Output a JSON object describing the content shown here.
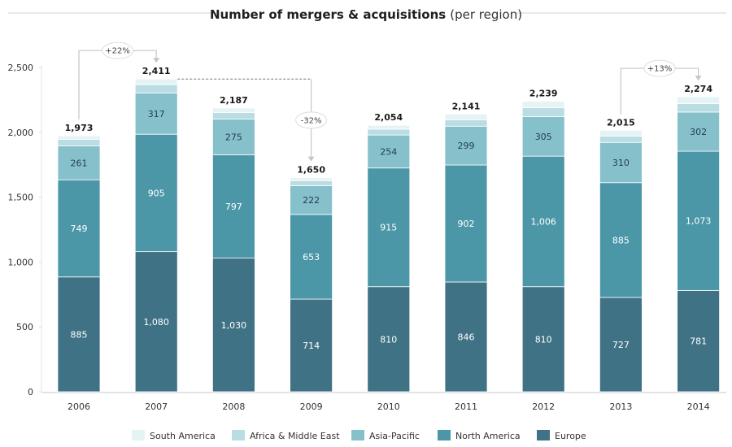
{
  "chart_data": {
    "type": "bar",
    "stacked": true,
    "title": "Number of mergers & acquisitions",
    "subtitle": "(per region)",
    "xlabel": "",
    "ylabel": "",
    "ylim": [
      0,
      2500
    ],
    "yticks": [
      0,
      500,
      1000,
      1500,
      2000,
      2500
    ],
    "ytick_labels": [
      "0",
      "500",
      "1,000",
      "1,500",
      "2,000",
      "2,500"
    ],
    "grid": false,
    "legend_position": "bottom",
    "categories": [
      "2006",
      "2007",
      "2008",
      "2009",
      "2010",
      "2011",
      "2012",
      "2013",
      "2014"
    ],
    "series": [
      {
        "name": "Europe",
        "color": "#3f7285",
        "label_color": "#ffffff",
        "labeled": true,
        "values": [
          885,
          1080,
          1030,
          714,
          810,
          846,
          810,
          727,
          781
        ],
        "labels": [
          "885",
          "1,080",
          "1,030",
          "714",
          "810",
          "846",
          "810",
          "727",
          "781"
        ]
      },
      {
        "name": "North America",
        "color": "#4b97a8",
        "label_color": "#ffffff",
        "labeled": true,
        "values": [
          749,
          905,
          797,
          653,
          915,
          902,
          1006,
          885,
          1073
        ],
        "labels": [
          "749",
          "905",
          "797",
          "653",
          "915",
          "902",
          "1,006",
          "885",
          "1,073"
        ]
      },
      {
        "name": "Asia-Pacific",
        "color": "#86c1cb",
        "label_color": "#1f3d4a",
        "labeled": true,
        "values": [
          261,
          317,
          275,
          222,
          254,
          299,
          305,
          310,
          302
        ],
        "labels": [
          "261",
          "317",
          "275",
          "222",
          "254",
          "299",
          "305",
          "310",
          "302"
        ]
      },
      {
        "name": "Africa & Middle East",
        "color": "#b9dde3",
        "labeled": false,
        "values": [
          50,
          65,
          50,
          38,
          45,
          50,
          68,
          48,
          65
        ]
      },
      {
        "name": "South America",
        "color": "#e6f3f5",
        "labeled": false,
        "values": [
          28,
          44,
          35,
          23,
          30,
          44,
          50,
          45,
          53
        ]
      }
    ],
    "totals": [
      1973,
      2411,
      2187,
      1650,
      2054,
      2141,
      2239,
      2015,
      2274
    ],
    "total_labels": [
      "1,973",
      "2,411",
      "2,187",
      "1,650",
      "2,054",
      "2,141",
      "2,239",
      "2,015",
      "2,274"
    ],
    "legend_order": [
      "South America",
      "Africa & Middle East",
      "Asia-Pacific",
      "North America",
      "Europe"
    ],
    "annotations": [
      {
        "type": "growth",
        "from": "2006",
        "to": "2007",
        "label": "+22%"
      },
      {
        "type": "decline",
        "from": "2007",
        "to": "2009",
        "label": "-32%"
      },
      {
        "type": "growth",
        "from": "2013",
        "to": "2014",
        "label": "+13%"
      }
    ]
  }
}
